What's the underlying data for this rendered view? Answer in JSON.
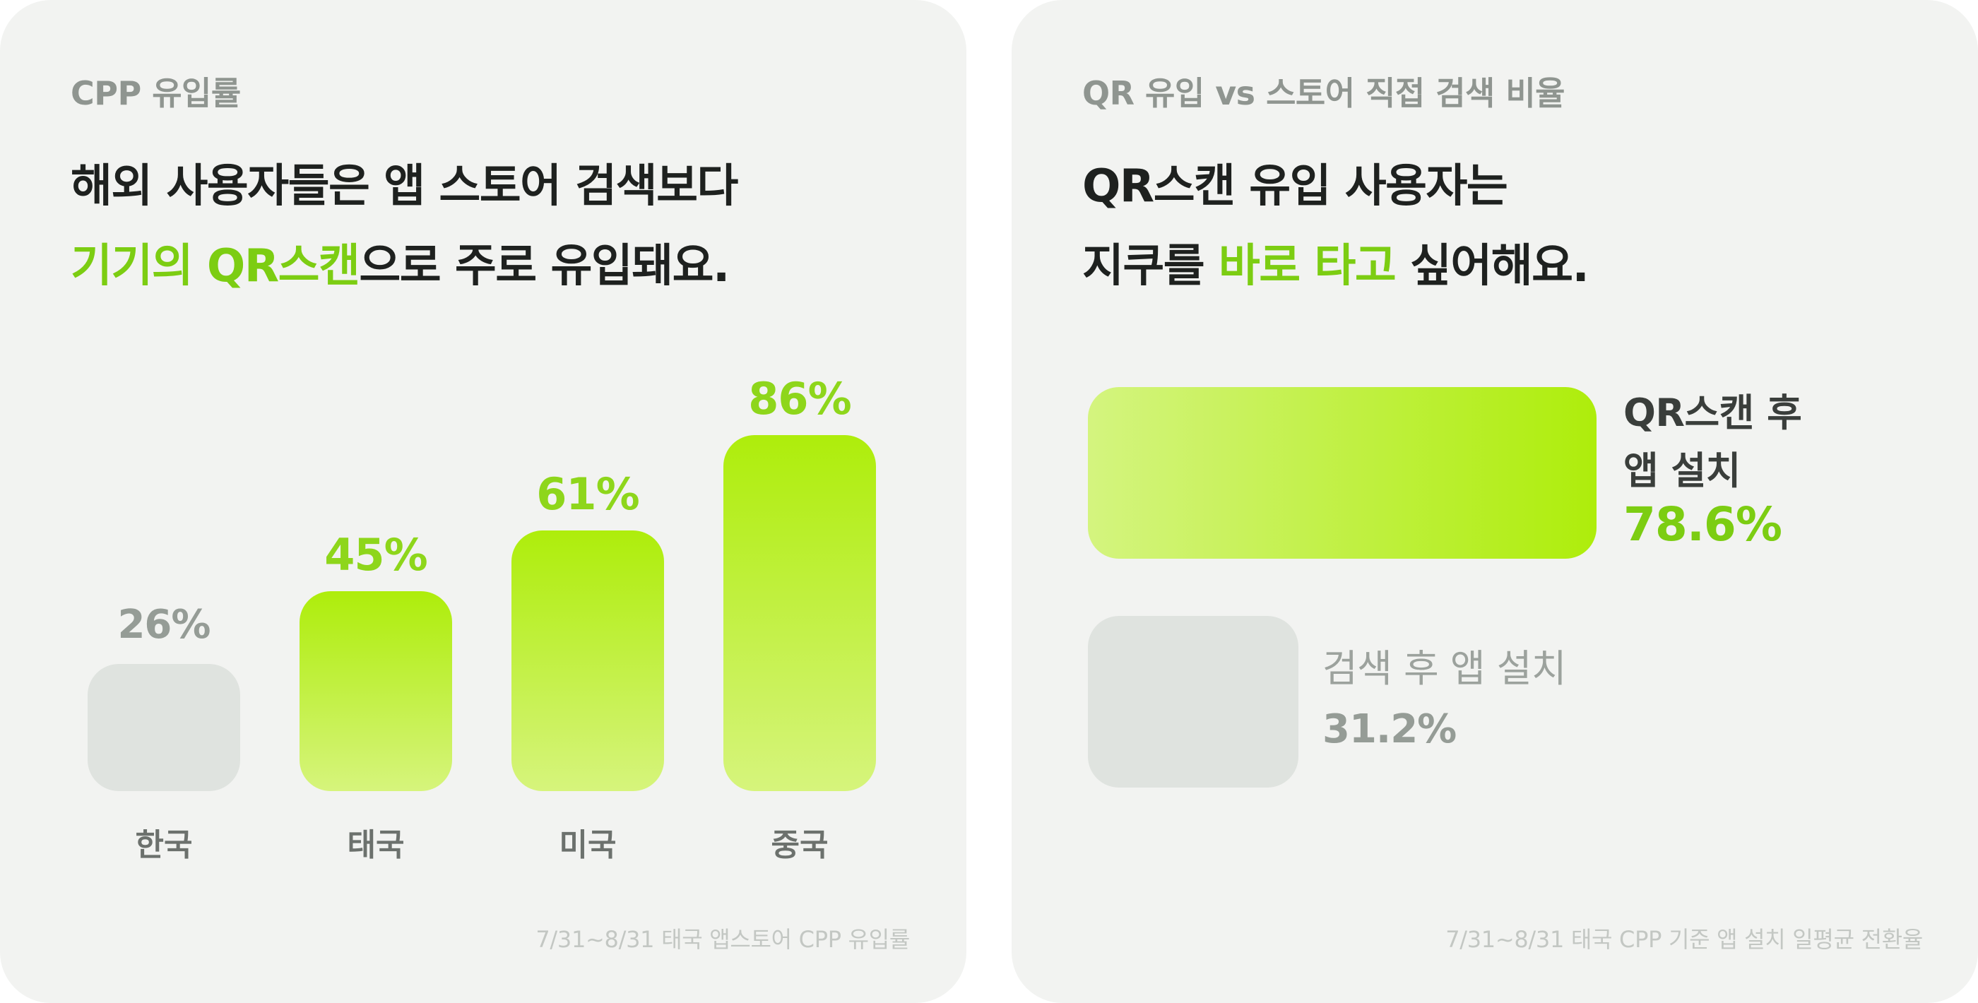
{
  "left_card": {
    "eyebrow": "CPP 유입률",
    "headline_line1": "해외 사용자들은 앱 스토어 검색보다",
    "headline_line2_accent": "기기의 QR스캔",
    "headline_line2_rest": "으로 주로 유입돼요.",
    "footnote": "7/31~8/31 태국 앱스토어 CPP 유입률"
  },
  "right_card": {
    "eyebrow": "QR 유입 vs 스토어 직접 검색 비율",
    "headline_line1": "QR스캔 유입 사용자는",
    "headline_line2_pre": "지쿠를 ",
    "headline_line2_accent": "바로 타고",
    "headline_line2_post": " 싶어해요.",
    "footnote": "7/31~8/31 태국 CPP 기준 앱 설치 일평균 전환율"
  },
  "colors": {
    "accent": "#7ccd12",
    "bar_top": "#aeed0b",
    "bar_bottom": "#d6f47c",
    "neutral_bar": "#dfe3df",
    "card_bg": "#f2f3f1"
  },
  "chart_data": [
    {
      "type": "bar",
      "categories": [
        "한국",
        "태국",
        "미국",
        "중국"
      ],
      "values": [
        26,
        45,
        61,
        86
      ],
      "value_labels": [
        "26%",
        "45%",
        "61%",
        "86%"
      ],
      "highlighted": [
        false,
        true,
        true,
        true
      ],
      "ylim": [
        0,
        100
      ]
    },
    {
      "type": "bar",
      "orientation": "horizontal",
      "categories": [
        "QR스캔 후 앱 설치",
        "검색 후 앱 설치"
      ],
      "category_label_lines": [
        [
          "QR스캔 후",
          "앱 설치"
        ],
        [
          "검색 후 앱 설치"
        ]
      ],
      "values": [
        78.6,
        31.2
      ],
      "value_labels": [
        "78.6%",
        "31.2%"
      ],
      "highlighted": [
        true,
        false
      ],
      "xlim": [
        0,
        100
      ]
    }
  ]
}
